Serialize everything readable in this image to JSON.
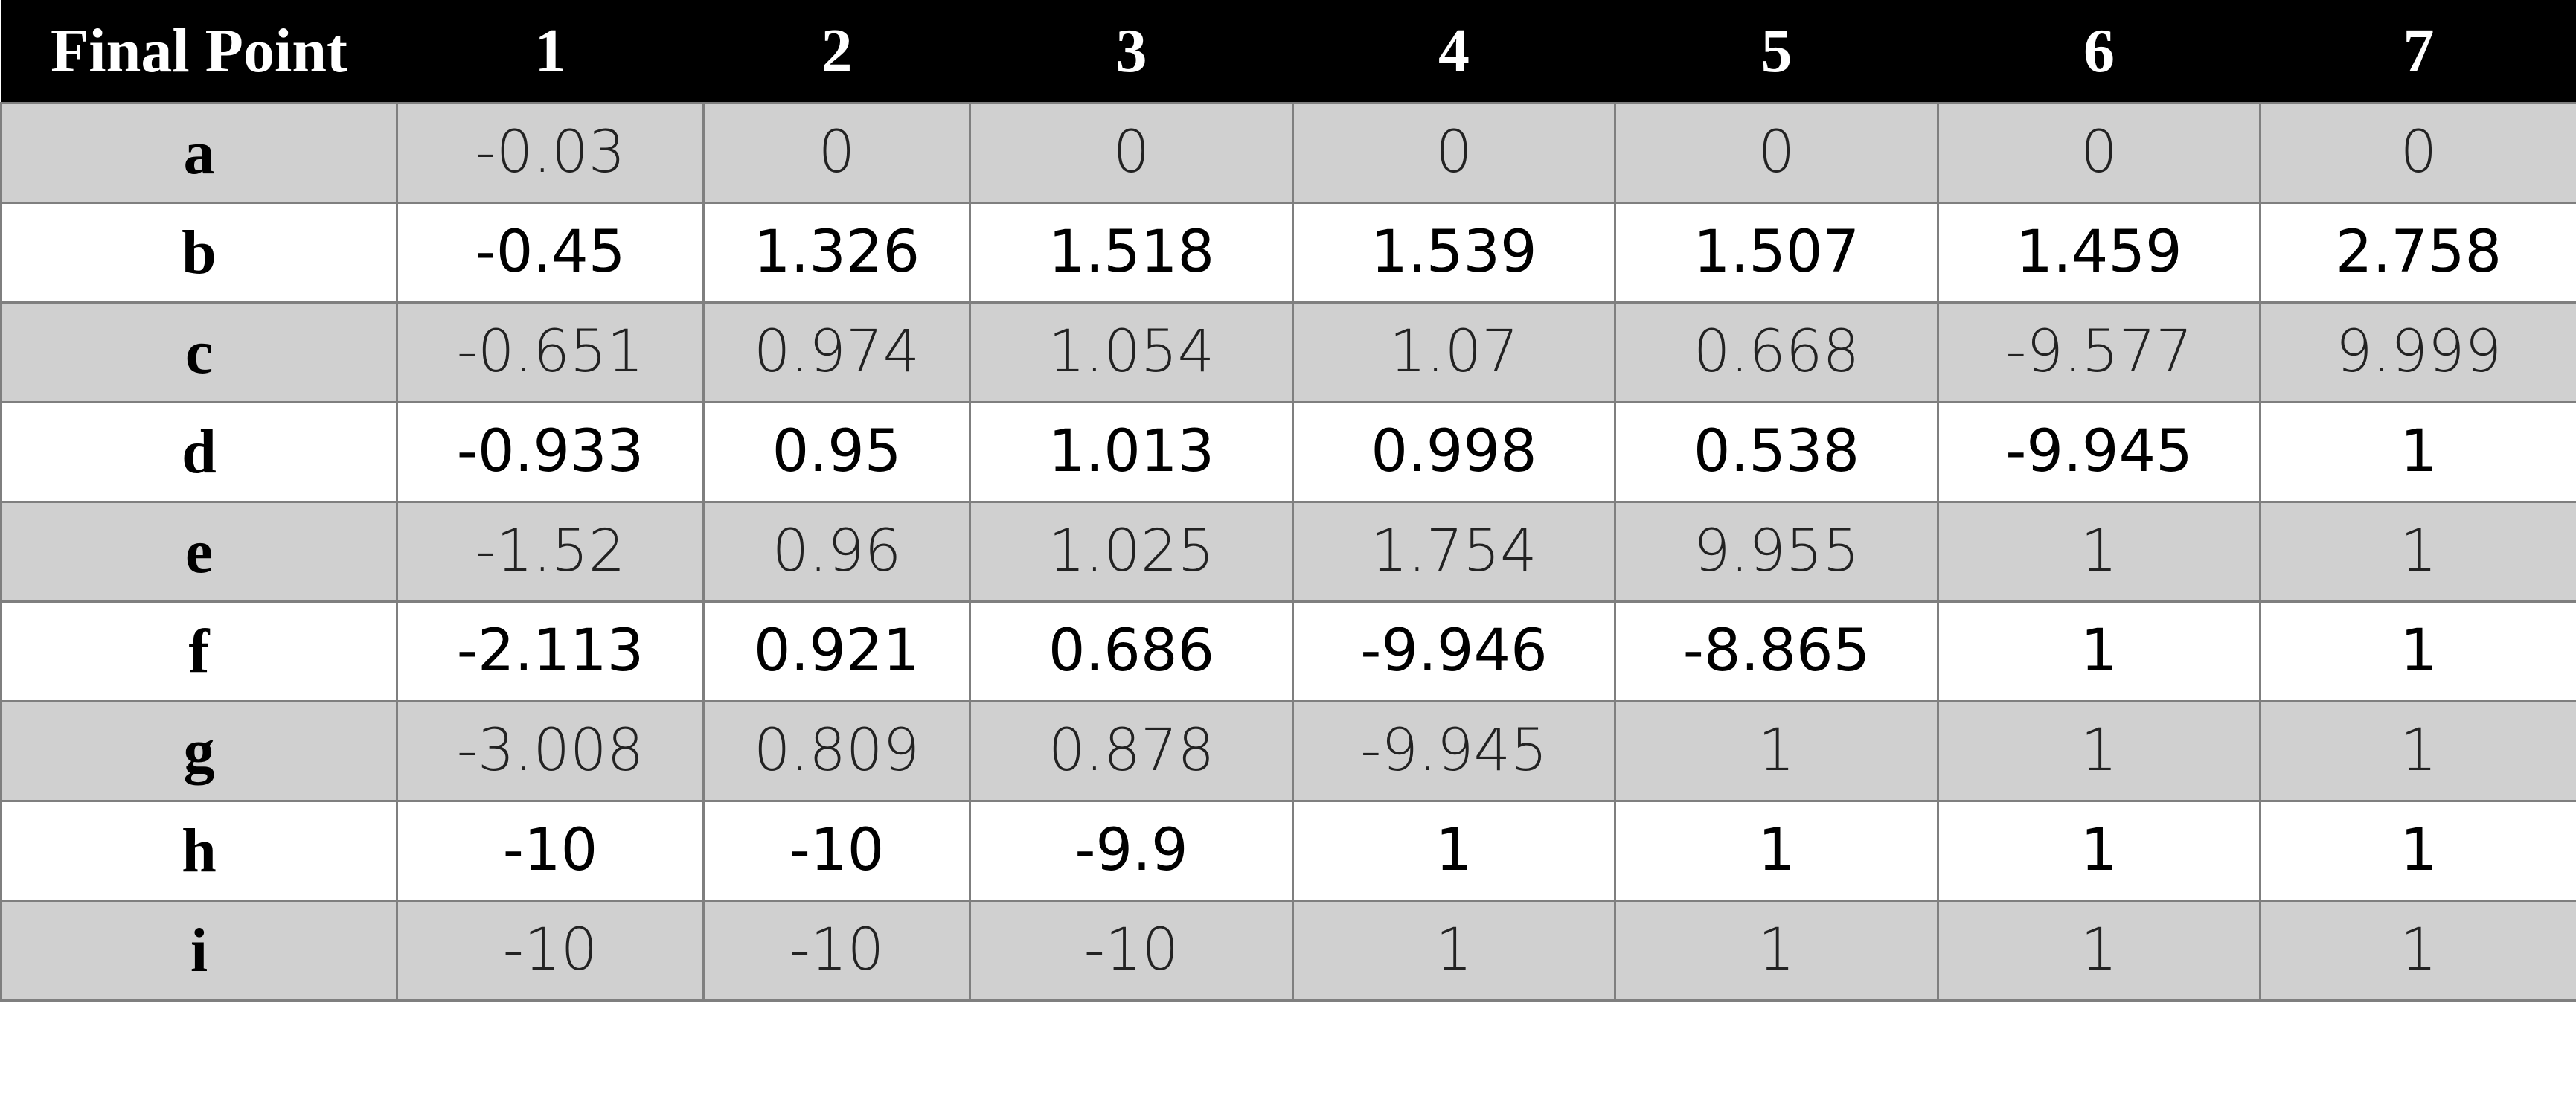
{
  "table": {
    "header": [
      "Final Point",
      "1",
      "2",
      "3",
      "4",
      "5",
      "6",
      "7"
    ],
    "rows": [
      {
        "label": "a",
        "values": [
          "-0.03",
          "0",
          "0",
          "0",
          "0",
          "0",
          "0"
        ]
      },
      {
        "label": "b",
        "values": [
          "-0.45",
          "1.326",
          "1.518",
          "1.539",
          "1.507",
          "1.459",
          "2.758"
        ]
      },
      {
        "label": "c",
        "values": [
          "-0.651",
          "0.974",
          "1.054",
          "1.07",
          "0.668",
          "-9.577",
          "9.999"
        ]
      },
      {
        "label": "d",
        "values": [
          "-0.933",
          "0.95",
          "1.013",
          "0.998",
          "0.538",
          "-9.945",
          "1"
        ]
      },
      {
        "label": "e",
        "values": [
          "-1.52",
          "0.96",
          "1.025",
          "1.754",
          "9.955",
          "1",
          "1"
        ]
      },
      {
        "label": "f",
        "values": [
          "-2.113",
          "0.921",
          "0.686",
          "-9.946",
          "-8.865",
          "1",
          "1"
        ]
      },
      {
        "label": "g",
        "values": [
          "-3.008",
          "0.809",
          "0.878",
          "-9.945",
          "1",
          "1",
          "1"
        ]
      },
      {
        "label": "h",
        "values": [
          "-10",
          "-10",
          "-9.9",
          "1",
          "1",
          "1",
          "1"
        ]
      },
      {
        "label": "i",
        "values": [
          "-10",
          "-10",
          "-10",
          "1",
          "1",
          "1",
          "1"
        ]
      }
    ]
  },
  "colors": {
    "header_bg": "#000000",
    "header_text": "#ffffff",
    "shaded_row_bg": "#d0d0d0",
    "plain_row_bg": "#ffffff",
    "grid_line": "#7f7f7f"
  }
}
